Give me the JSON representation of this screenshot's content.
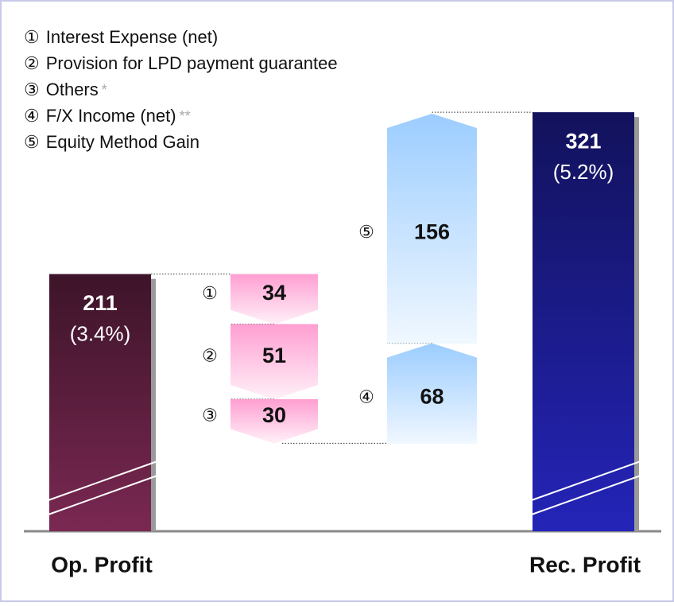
{
  "chart_data": {
    "type": "waterfall",
    "categories": [
      "Op. Profit",
      "①",
      "②",
      "③",
      "④",
      "⑤",
      "Rec. Profit"
    ],
    "values": [
      211,
      -34,
      -51,
      -30,
      68,
      156,
      321
    ],
    "value_labels": [
      "211",
      "34",
      "51",
      "30",
      "68",
      "156",
      "321"
    ],
    "percent_labels": [
      "(3.4%)",
      null,
      null,
      null,
      null,
      null,
      "(5.2%)"
    ],
    "colors": [
      "#7a2852",
      "#ff9fd2",
      "#ff9fd2",
      "#ff9fd2",
      "#9ccdff",
      "#9ccdff",
      "#2424b8"
    ],
    "legend": [
      "Interest Expense (net)",
      "Provision for LPD payment guarantee",
      "Others",
      "F/X Income (net)",
      "Equity Method Gain"
    ],
    "legend_notes": [
      null,
      null,
      "*",
      "**",
      null
    ]
  }
}
